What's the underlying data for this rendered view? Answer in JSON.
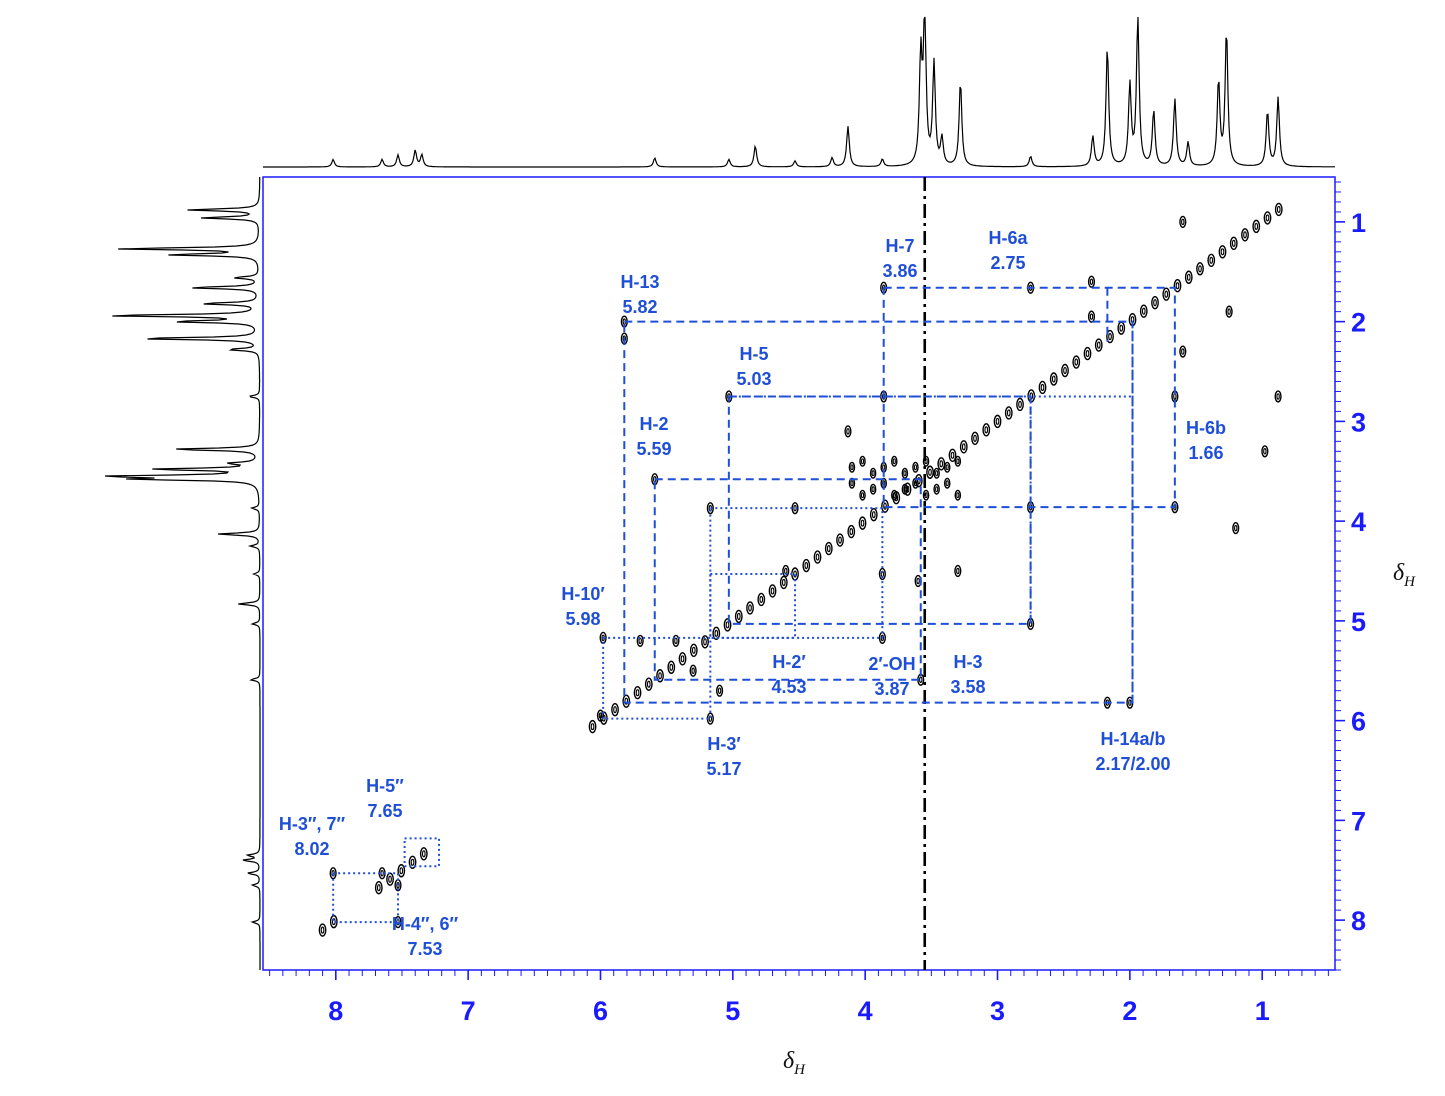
{
  "chart_data": {
    "type": "scatter",
    "title": "",
    "xlabel": "δH",
    "ylabel": "δH",
    "xlim": [
      8.55,
      0.45
    ],
    "ylim": [
      0.55,
      8.5
    ],
    "x_ticks": [
      8,
      7,
      6,
      5,
      4,
      3,
      2,
      1
    ],
    "y_ticks": [
      1,
      2,
      3,
      4,
      5,
      6,
      7,
      8
    ],
    "colors": {
      "axis": "#1a1aff",
      "annotation": "#1f4fd6",
      "spectrum": "#000000"
    },
    "solvent_line_ppm": 3.55,
    "projection_peaks": [
      {
        "ppm": 8.02,
        "h": 0.05
      },
      {
        "ppm": 7.65,
        "h": 0.05
      },
      {
        "ppm": 7.53,
        "h": 0.08
      },
      {
        "ppm": 7.4,
        "h": 0.11
      },
      {
        "ppm": 7.35,
        "h": 0.08
      },
      {
        "ppm": 5.59,
        "h": 0.06
      },
      {
        "ppm": 5.03,
        "h": 0.05
      },
      {
        "ppm": 4.83,
        "h": 0.14
      },
      {
        "ppm": 4.53,
        "h": 0.04
      },
      {
        "ppm": 4.25,
        "h": 0.06
      },
      {
        "ppm": 4.13,
        "h": 0.27
      },
      {
        "ppm": 3.87,
        "h": 0.05
      },
      {
        "ppm": 3.58,
        "h": 0.72
      },
      {
        "ppm": 3.55,
        "h": 1.0
      },
      {
        "ppm": 3.48,
        "h": 0.68
      },
      {
        "ppm": 3.42,
        "h": 0.18
      },
      {
        "ppm": 3.28,
        "h": 0.57
      },
      {
        "ppm": 2.75,
        "h": 0.07
      },
      {
        "ppm": 2.28,
        "h": 0.2
      },
      {
        "ppm": 2.17,
        "h": 0.8
      },
      {
        "ppm": 2.0,
        "h": 0.54
      },
      {
        "ppm": 1.94,
        "h": 1.0
      },
      {
        "ppm": 1.82,
        "h": 0.37
      },
      {
        "ppm": 1.66,
        "h": 0.45
      },
      {
        "ppm": 1.56,
        "h": 0.16
      },
      {
        "ppm": 1.33,
        "h": 0.57
      },
      {
        "ppm": 1.27,
        "h": 0.91
      },
      {
        "ppm": 0.96,
        "h": 0.37
      },
      {
        "ppm": 0.88,
        "h": 0.46
      }
    ],
    "diagonal_range": [
      8.1,
      0.8
    ],
    "cross_peaks": [
      {
        "x": 3.86,
        "y": 1.66
      },
      {
        "x": 1.66,
        "y": 3.86
      },
      {
        "x": 3.86,
        "y": 2.75
      },
      {
        "x": 2.75,
        "y": 3.86
      },
      {
        "x": 2.75,
        "y": 1.66
      },
      {
        "x": 1.66,
        "y": 2.75
      },
      {
        "x": 5.03,
        "y": 2.75
      },
      {
        "x": 2.75,
        "y": 5.03
      },
      {
        "x": 5.82,
        "y": 2.0
      },
      {
        "x": 5.82,
        "y": 2.17
      },
      {
        "x": 2.17,
        "y": 5.82
      },
      {
        "x": 2.0,
        "y": 5.82
      },
      {
        "x": 5.59,
        "y": 3.58
      },
      {
        "x": 3.58,
        "y": 5.59
      },
      {
        "x": 5.17,
        "y": 3.87
      },
      {
        "x": 3.87,
        "y": 5.17
      },
      {
        "x": 5.17,
        "y": 5.98
      },
      {
        "x": 5.98,
        "y": 5.17
      },
      {
        "x": 4.53,
        "y": 3.87
      },
      {
        "x": 3.87,
        "y": 4.53
      },
      {
        "x": 8.02,
        "y": 7.53
      },
      {
        "x": 7.53,
        "y": 8.02
      },
      {
        "x": 7.65,
        "y": 7.53
      },
      {
        "x": 7.53,
        "y": 7.65
      },
      {
        "x": 2.29,
        "y": 1.6
      },
      {
        "x": 2.29,
        "y": 1.95
      },
      {
        "x": 1.6,
        "y": 1.0
      },
      {
        "x": 1.25,
        "y": 1.9
      },
      {
        "x": 1.6,
        "y": 2.3
      },
      {
        "x": 0.98,
        "y": 3.3
      },
      {
        "x": 1.2,
        "y": 4.07
      },
      {
        "x": 0.88,
        "y": 2.75
      },
      {
        "x": 4.13,
        "y": 3.1
      },
      {
        "x": 4.6,
        "y": 4.5
      },
      {
        "x": 3.3,
        "y": 4.5
      },
      {
        "x": 3.6,
        "y": 4.6
      },
      {
        "x": 5.43,
        "y": 5.2
      },
      {
        "x": 5.3,
        "y": 5.5
      },
      {
        "x": 5.1,
        "y": 5.7
      },
      {
        "x": 5.7,
        "y": 5.2
      },
      {
        "x": 6.0,
        "y": 5.95
      }
    ],
    "annotations": [
      {
        "id": "h3pp",
        "lines": [
          "H-3″, 7″",
          "8.02"
        ]
      },
      {
        "id": "h5pp",
        "lines": [
          "H-5″",
          "7.65"
        ]
      },
      {
        "id": "h4pp",
        "lines": [
          "H-4″, 6″",
          "7.53"
        ]
      },
      {
        "id": "h13",
        "lines": [
          "H-13",
          "5.82"
        ]
      },
      {
        "id": "h5",
        "lines": [
          "H-5",
          "5.03"
        ]
      },
      {
        "id": "h2",
        "lines": [
          "H-2",
          "5.59"
        ]
      },
      {
        "id": "h10p",
        "lines": [
          "H-10′",
          "5.98"
        ]
      },
      {
        "id": "h7",
        "lines": [
          "H-7",
          "3.86"
        ]
      },
      {
        "id": "h6a",
        "lines": [
          "H-6a",
          "2.75"
        ]
      },
      {
        "id": "h6b",
        "lines": [
          "H-6b",
          "1.66"
        ]
      },
      {
        "id": "h2p",
        "lines": [
          "H-2′",
          "4.53"
        ]
      },
      {
        "id": "oh2p",
        "lines": [
          "2′-OH",
          "3.87"
        ]
      },
      {
        "id": "h3",
        "lines": [
          "H-3",
          "3.58"
        ]
      },
      {
        "id": "h3p",
        "lines": [
          "H-3′",
          "5.17"
        ]
      },
      {
        "id": "h14",
        "lines": [
          "H-14a/b",
          "2.17/2.00"
        ]
      }
    ],
    "dashed_boxes": [
      [
        5.82,
        2.0,
        1.98,
        5.82
      ],
      [
        5.03,
        2.75,
        2.75,
        5.03
      ],
      [
        3.86,
        1.66,
        1.66,
        3.86
      ],
      [
        5.59,
        3.58,
        3.58,
        5.59
      ]
    ],
    "dotted_boxes": [
      [
        5.98,
        5.17,
        5.17,
        5.98
      ],
      [
        5.17,
        3.87,
        3.87,
        5.17
      ],
      [
        5.17,
        4.53,
        4.53,
        5.17
      ],
      [
        8.02,
        7.53,
        7.53,
        8.02
      ],
      [
        7.48,
        7.18,
        7.22,
        7.46
      ]
    ]
  }
}
